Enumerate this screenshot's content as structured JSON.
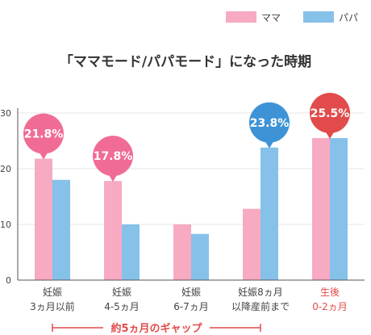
{
  "chart_data": {
    "type": "bar",
    "title": "「ママモード/パパモード」になった時期",
    "xlabel": "",
    "ylabel": "",
    "ylim": [
      0,
      30
    ],
    "yticks": [
      0,
      10,
      20,
      30
    ],
    "grid": true,
    "legend_position": "top-right",
    "categories": [
      {
        "line1": "妊娠",
        "line2": "3ヵ月以前"
      },
      {
        "line1": "妊娠",
        "line2": "4-5ヵ月"
      },
      {
        "line1": "妊娠",
        "line2": "6-7ヵ月"
      },
      {
        "line1": "妊娠8ヵ月",
        "line2": "以降産前まで"
      },
      {
        "line1": "生後",
        "line2": "0-2ヵ月"
      }
    ],
    "highlight_category_index": 4,
    "series": [
      {
        "name": "ママ",
        "color": "#f7aac1",
        "values": [
          21.8,
          17.8,
          10.0,
          12.8,
          25.5
        ]
      },
      {
        "name": "パパ",
        "color": "#86c1ea",
        "values": [
          18.0,
          10.0,
          8.3,
          23.8,
          25.5
        ]
      }
    ],
    "callouts": [
      {
        "category_index": 0,
        "series_index": 0,
        "label": "21.8%",
        "color": "#f16c95"
      },
      {
        "category_index": 1,
        "series_index": 0,
        "label": "17.8%",
        "color": "#f16c95"
      },
      {
        "category_index": 3,
        "series_index": 1,
        "label": "23.8%",
        "color": "#3d93d6"
      },
      {
        "category_index": 4,
        "series_index": null,
        "label": "25.5%",
        "color": "#e24b4b"
      }
    ],
    "gap_annotation": {
      "label": "約5ヵ月のギャップ",
      "from_category_index": 0,
      "to_category_index": 3,
      "color": "#e24b4b"
    },
    "colors": {
      "axis_text": "#444444",
      "category_text": "#444444",
      "highlight_text": "#e24b4b",
      "grid": "#e6e6e6",
      "axis": "#555555"
    }
  }
}
